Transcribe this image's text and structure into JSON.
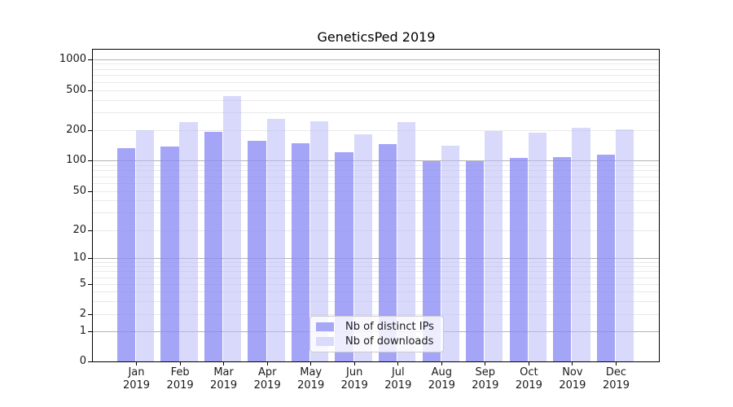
{
  "title": "GeneticsPed 2019",
  "legend": {
    "items": [
      {
        "label": "Nb of distinct IPs",
        "color": "#a7a7f7"
      },
      {
        "label": "Nb of downloads",
        "color": "#dadafb"
      }
    ]
  },
  "chart_data": {
    "type": "bar",
    "title": "GeneticsPed 2019",
    "categories": [
      "Jan 2019",
      "Feb 2019",
      "Mar 2019",
      "Apr 2019",
      "May 2019",
      "Jun 2019",
      "Jul 2019",
      "Aug 2019",
      "Sep 2019",
      "Oct 2019",
      "Nov 2019",
      "Dec 2019"
    ],
    "series": [
      {
        "name": "Nb of distinct IPs",
        "color": "rgba(140,140,245,0.78)",
        "values": [
          132,
          137,
          193,
          156,
          148,
          121,
          146,
          98,
          98,
          107,
          109,
          115
        ]
      },
      {
        "name": "Nb of downloads",
        "color": "rgba(185,185,248,0.55)",
        "values": [
          200,
          243,
          435,
          258,
          245,
          181,
          241,
          140,
          196,
          190,
          212,
          203
        ]
      }
    ],
    "yscale": "symlog",
    "yticks": [
      1000,
      500,
      200,
      100,
      50,
      20,
      10,
      5,
      2,
      1,
      0
    ],
    "major_gridlines": [
      1,
      10,
      100,
      1000
    ],
    "minor_gridlines": [
      2,
      3,
      4,
      5,
      6,
      7,
      8,
      9,
      20,
      30,
      40,
      50,
      60,
      70,
      80,
      90,
      200,
      300,
      400,
      500,
      600,
      700,
      800,
      900
    ],
    "ylim": [
      0,
      1300
    ],
    "xlabel": "",
    "ylabel": "",
    "grid": true,
    "legend_position": "lower center"
  }
}
